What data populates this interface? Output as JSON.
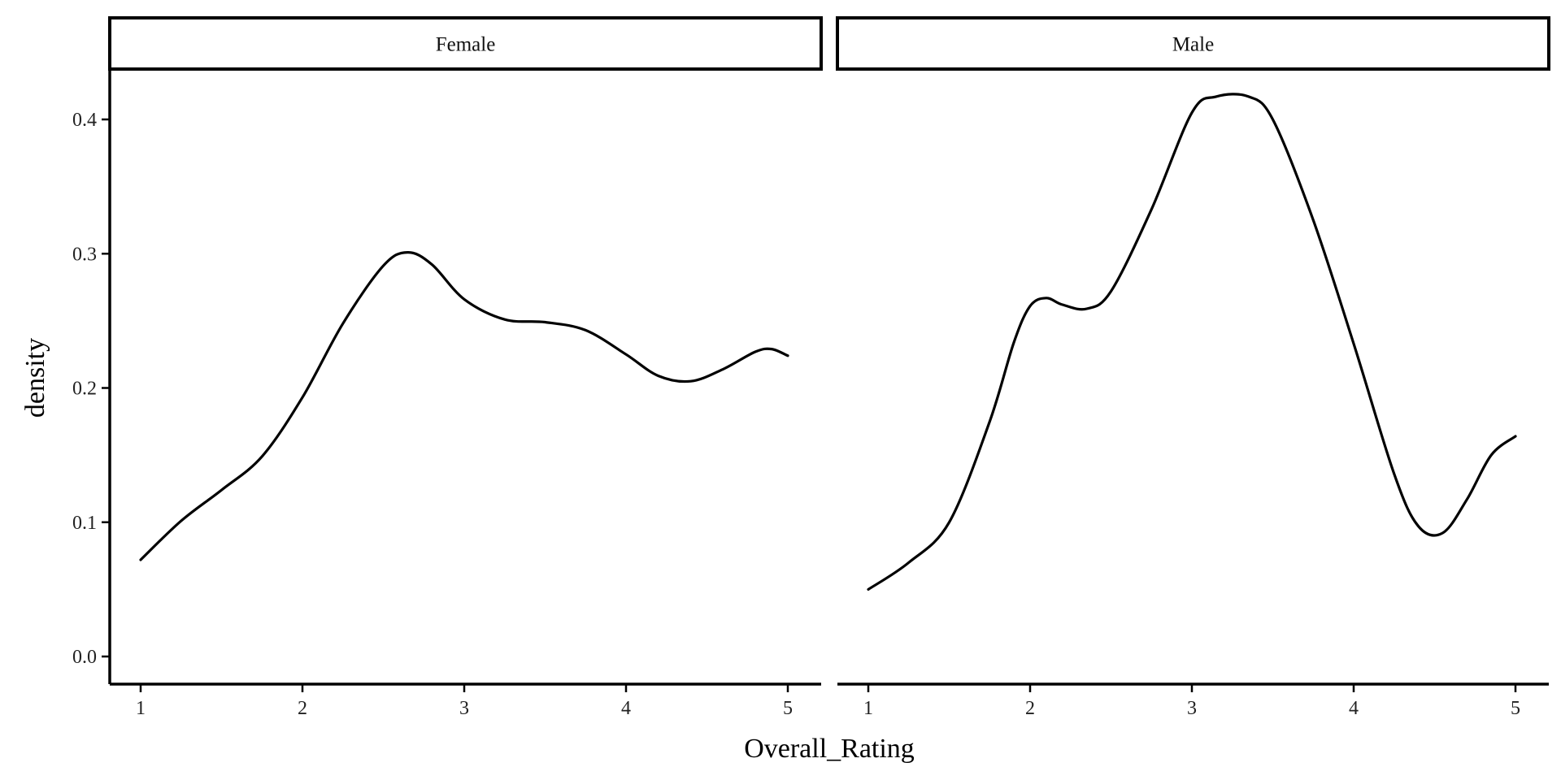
{
  "chart_data": {
    "type": "line",
    "subtype": "faceted density",
    "xlabel": "Overall_Rating",
    "ylabel": "density",
    "xlim": [
      1,
      5
    ],
    "ylim": [
      0,
      0.42
    ],
    "x_ticks": [
      1,
      2,
      3,
      4,
      5
    ],
    "y_ticks": [
      "0.0",
      "0.1",
      "0.2",
      "0.3",
      "0.4"
    ],
    "grid": false,
    "line_color": "#000000",
    "facets": [
      {
        "label": "Female",
        "x": [
          1.0,
          1.25,
          1.5,
          1.75,
          2.0,
          2.25,
          2.5,
          2.65,
          2.8,
          3.0,
          3.25,
          3.5,
          3.75,
          4.0,
          4.2,
          4.4,
          4.6,
          4.8,
          4.9,
          5.0
        ],
        "y": [
          0.072,
          0.101,
          0.124,
          0.149,
          0.193,
          0.248,
          0.291,
          0.301,
          0.292,
          0.266,
          0.251,
          0.249,
          0.243,
          0.225,
          0.209,
          0.205,
          0.214,
          0.227,
          0.229,
          0.224
        ]
      },
      {
        "label": "Male",
        "x": [
          1.0,
          1.25,
          1.5,
          1.75,
          1.9,
          2.0,
          2.1,
          2.2,
          2.35,
          2.5,
          2.75,
          3.0,
          3.15,
          3.35,
          3.5,
          3.75,
          4.0,
          4.25,
          4.4,
          4.55,
          4.7,
          4.85,
          5.0
        ],
        "y": [
          0.05,
          0.07,
          0.1,
          0.175,
          0.234,
          0.261,
          0.267,
          0.262,
          0.259,
          0.272,
          0.333,
          0.405,
          0.417,
          0.417,
          0.4,
          0.325,
          0.233,
          0.136,
          0.097,
          0.092,
          0.117,
          0.15,
          0.164
        ]
      }
    ]
  }
}
